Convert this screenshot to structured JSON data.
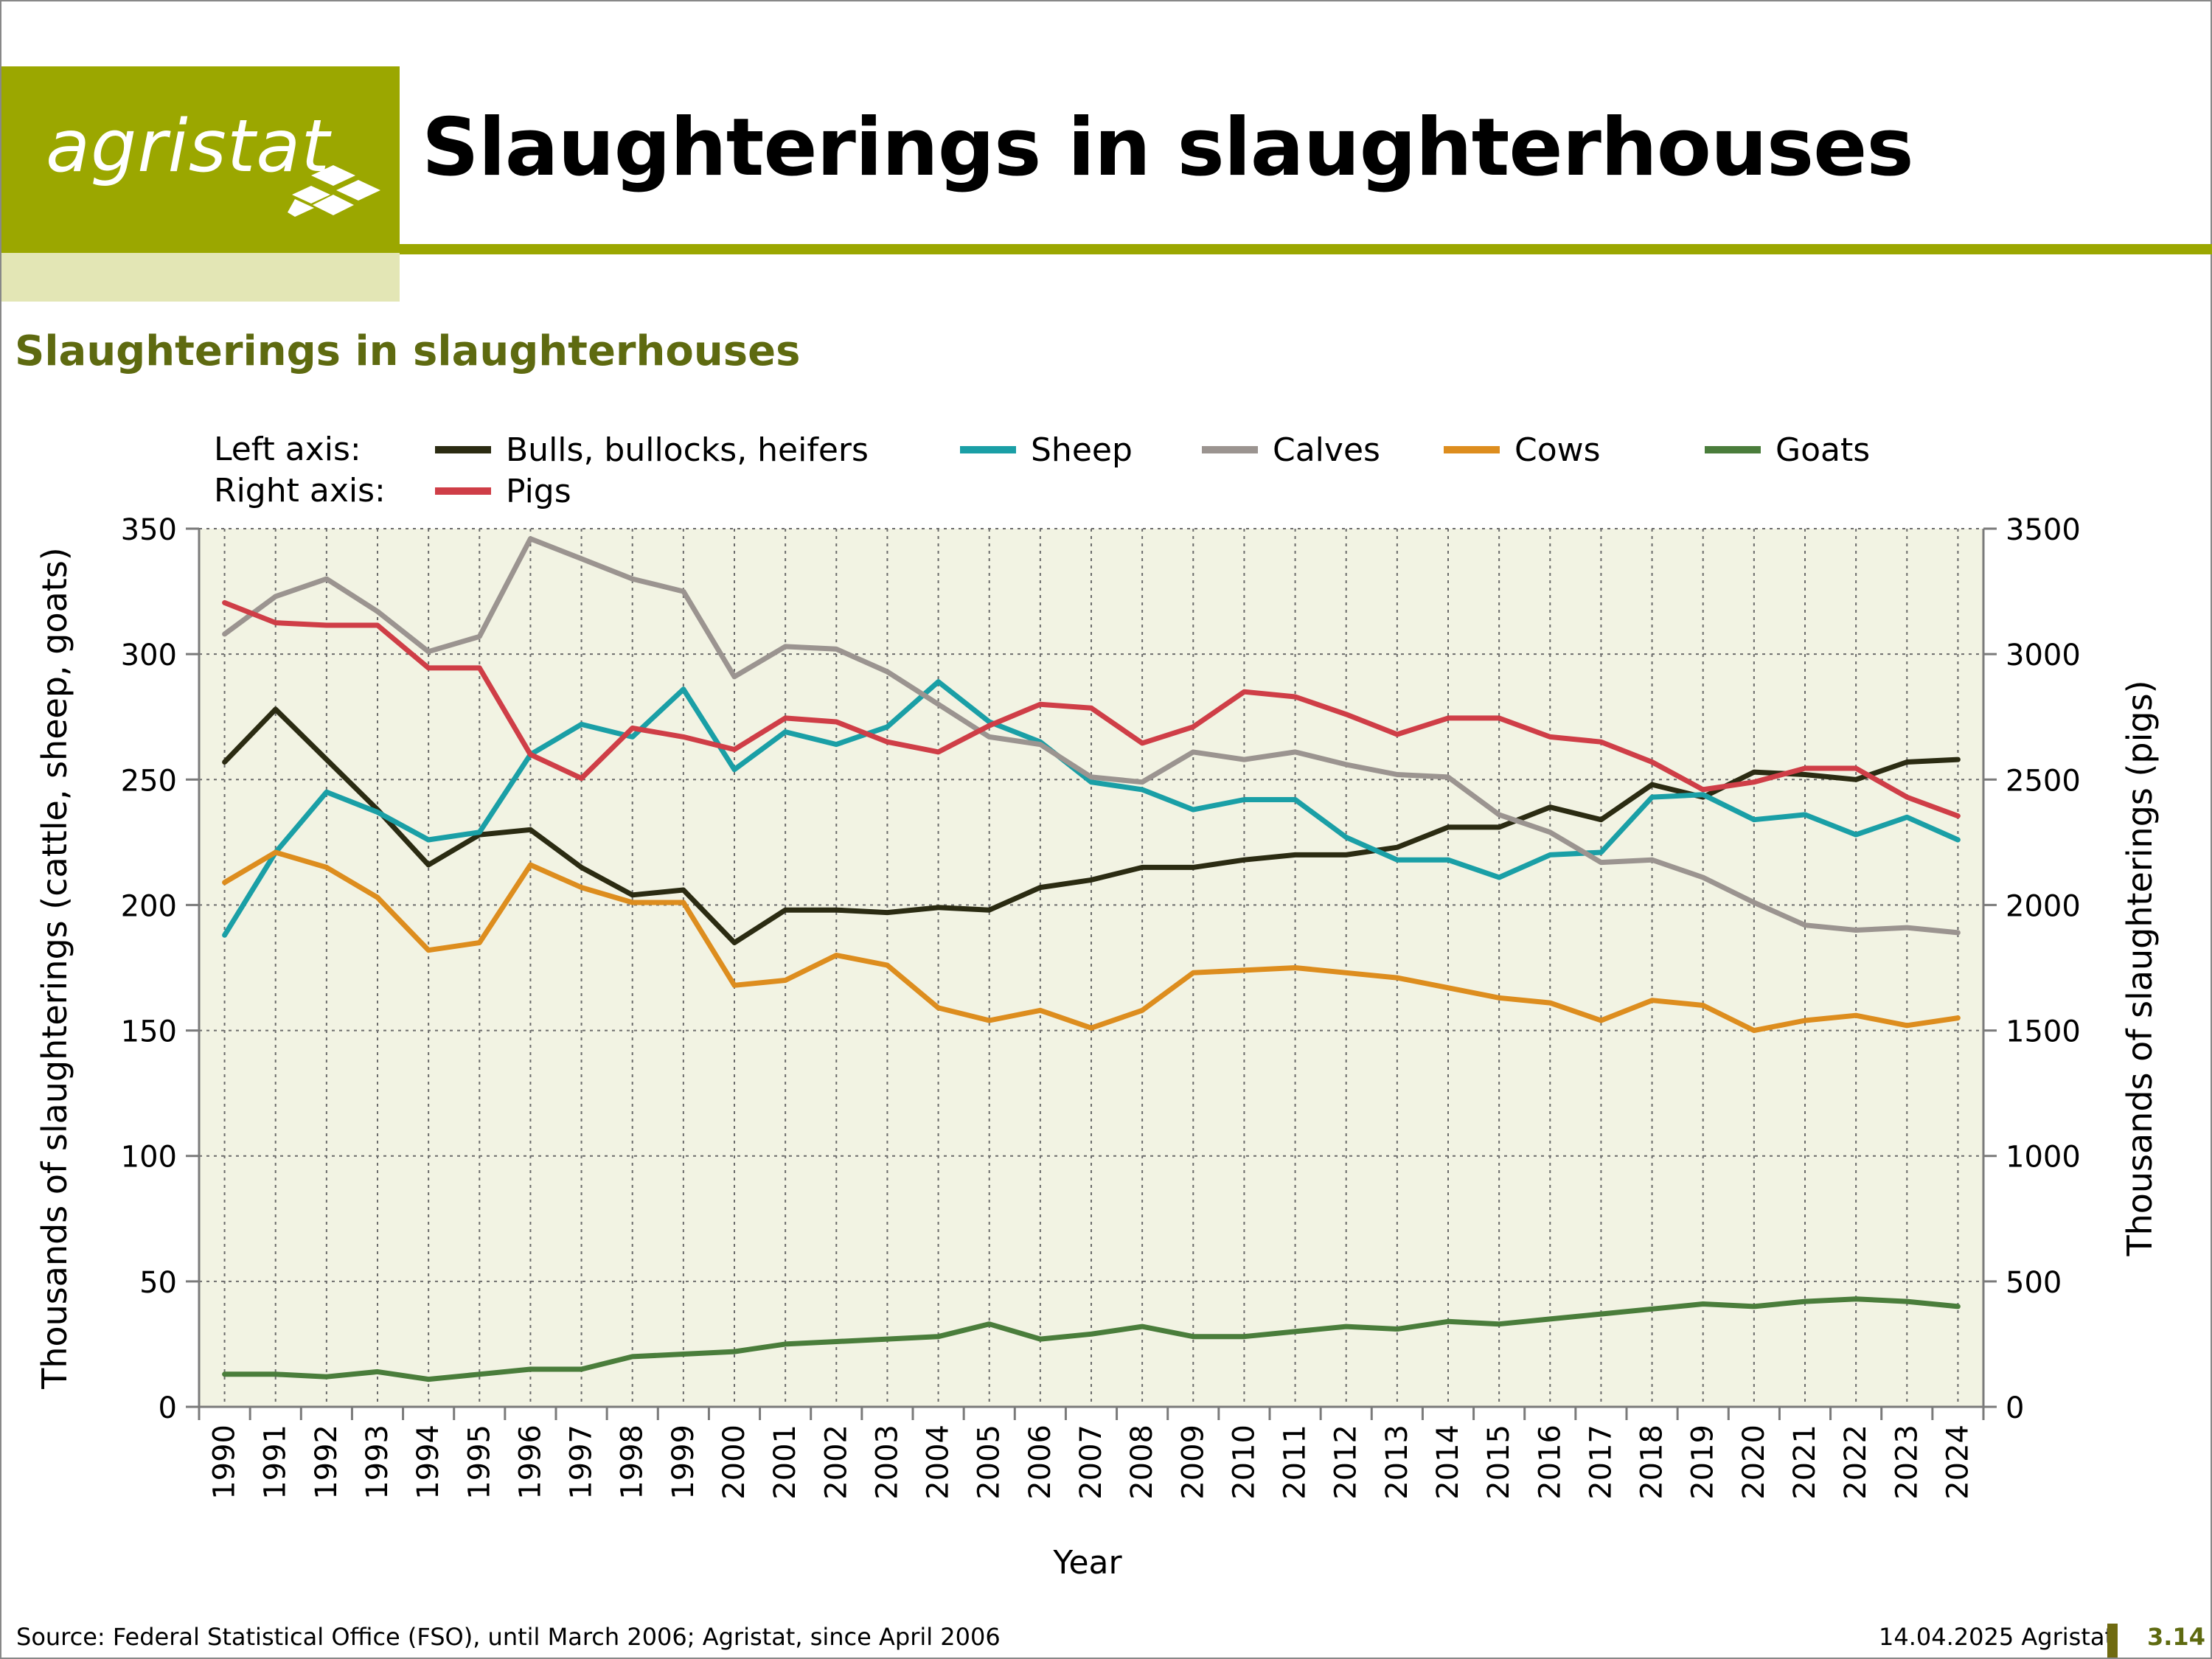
{
  "header": {
    "logo_text": "agristat",
    "title": "Slaughterings in slaughterhouses"
  },
  "colors": {
    "brand": "#9ba700",
    "brand_light": "#e3e6b5",
    "subtitle": "#5e6a10",
    "plot_bg": "#f2f3e3"
  },
  "chart_data": {
    "type": "line",
    "title": "Slaughterings in slaughterhouses",
    "xlabel": "Year",
    "ylabel_left": "Thousands of slaughterings (cattle, sheep, goats)",
    "ylabel_right": "Thousands of slaughterings (pigs)",
    "ylim_left": [
      0,
      350
    ],
    "ylim_right": [
      0,
      3500
    ],
    "yticks_left": [
      "0",
      "50",
      "100",
      "150",
      "200",
      "250",
      "300",
      "350"
    ],
    "yticks_right": [
      "0",
      "500",
      "1000",
      "1500",
      "2000",
      "2500",
      "3000",
      "3500"
    ],
    "grid": true,
    "legend_label_left": "Left axis:",
    "legend_label_right": "Right axis:",
    "x": [
      "1990",
      "1991",
      "1992",
      "1993",
      "1994",
      "1995",
      "1996",
      "1997",
      "1998",
      "1999",
      "2000",
      "2001",
      "2002",
      "2003",
      "2004",
      "2005",
      "2006",
      "2007",
      "2008",
      "2009",
      "2010",
      "2011",
      "2012",
      "2013",
      "2014",
      "2015",
      "2016",
      "2017",
      "2018",
      "2019",
      "2020",
      "2021",
      "2022",
      "2023",
      "2024"
    ],
    "series": [
      {
        "name": "Bulls, bullocks, heifers",
        "axis": "left",
        "color": "#2b2b12",
        "values": [
          257,
          278,
          258,
          238,
          216,
          228,
          230,
          215,
          204,
          206,
          185,
          198,
          198,
          197,
          199,
          198,
          207,
          210,
          215,
          215,
          218,
          220,
          220,
          223,
          231,
          231,
          239,
          234,
          248,
          243,
          253,
          252,
          250,
          257,
          258
        ]
      },
      {
        "name": "Sheep",
        "axis": "left",
        "color": "#1a9fa6",
        "values": [
          188,
          221,
          245,
          237,
          226,
          229,
          260,
          272,
          267,
          286,
          254,
          269,
          264,
          271,
          289,
          273,
          265,
          249,
          246,
          238,
          242,
          242,
          227,
          218,
          218,
          211,
          220,
          221,
          243,
          244,
          234,
          236,
          228,
          235,
          226
        ]
      },
      {
        "name": "Calves",
        "axis": "left",
        "color": "#9b9490",
        "values": [
          308,
          323,
          330,
          317,
          301,
          307,
          346,
          338,
          330,
          325,
          291,
          303,
          302,
          293,
          280,
          267,
          264,
          251,
          249,
          261,
          258,
          261,
          256,
          252,
          251,
          236,
          229,
          217,
          218,
          211,
          201,
          192,
          190,
          191,
          189
        ]
      },
      {
        "name": "Cows",
        "axis": "left",
        "color": "#dd8d1e",
        "values": [
          209,
          221,
          215,
          203,
          182,
          185,
          216,
          207,
          201,
          201,
          168,
          170,
          180,
          176,
          159,
          154,
          158,
          151,
          158,
          173,
          174,
          175,
          173,
          171,
          167,
          163,
          161,
          154,
          162,
          160,
          150,
          154,
          156,
          152,
          155
        ]
      },
      {
        "name": "Goats",
        "axis": "left",
        "color": "#4a7d3b",
        "values": [
          13,
          13,
          12,
          14,
          11,
          13,
          15,
          15,
          20,
          21,
          22,
          25,
          26,
          27,
          28,
          33,
          27,
          29,
          32,
          28,
          28,
          30,
          32,
          31,
          34,
          33,
          35,
          37,
          39,
          41,
          40,
          42,
          43,
          42,
          40
        ]
      },
      {
        "name": "Pigs",
        "axis": "right",
        "color": "#cf3e47",
        "values": [
          3205,
          3125,
          3115,
          3115,
          2945,
          2945,
          2600,
          2505,
          2705,
          2670,
          2620,
          2745,
          2730,
          2650,
          2610,
          2715,
          2800,
          2785,
          2645,
          2710,
          2850,
          2830,
          2760,
          2680,
          2745,
          2745,
          2670,
          2650,
          2570,
          2460,
          2490,
          2545,
          2545,
          2430,
          2355
        ]
      }
    ]
  },
  "footer": {
    "source": "Source: Federal Statistical Office (FSO), until March 2006; Agristat, since April 2006",
    "date": "14.04.2025 Agristat",
    "page": "3.14"
  }
}
